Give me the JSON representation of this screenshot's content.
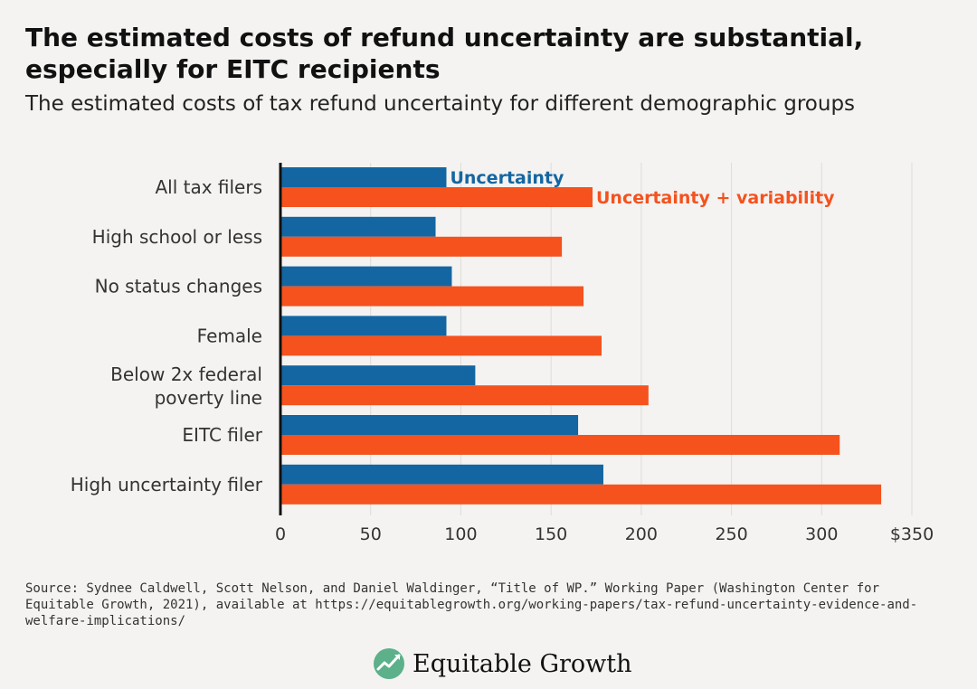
{
  "title": "The estimated costs of refund uncertainty are substantial, especially for EITC recipients",
  "subtitle": "The estimated costs of tax refund uncertainty for different demographic groups",
  "source": "Source: Sydnee Caldwell, Scott Nelson, and Daniel Waldinger, “Title of WP.” Working Paper (Washington Center for Equitable Growth, 2021), available at https://equitablegrowth.org/working-papers/tax-refund-uncertainty-evidence-and-welfare-implications/",
  "logo": {
    "text": "Equitable Growth",
    "icon": "leaf-chart-icon"
  },
  "colors": {
    "uncertainty": "#1466a2",
    "uncertainty_variability": "#f5521e",
    "background": "#f4f3f1"
  },
  "chart_data": {
    "type": "bar",
    "orientation": "horizontal",
    "categories": [
      [
        "All tax filers"
      ],
      [
        "High school or less"
      ],
      [
        "No status changes"
      ],
      [
        "Female"
      ],
      [
        "Below 2x federal",
        "poverty line"
      ],
      [
        "EITC filer"
      ],
      [
        "High uncertainty filer"
      ]
    ],
    "series": [
      {
        "name": "Uncertainty",
        "color": "#1466a2",
        "values": [
          92,
          86,
          95,
          92,
          108,
          165,
          179
        ]
      },
      {
        "name": "Uncertainty + variability",
        "color": "#f5521e",
        "values": [
          173,
          156,
          168,
          178,
          204,
          310,
          333
        ]
      }
    ],
    "xlim": [
      0,
      350
    ],
    "xticks": [
      "0",
      "50",
      "100",
      "150",
      "200",
      "250",
      "300",
      "$350"
    ],
    "grid": true,
    "legend": "inline"
  }
}
